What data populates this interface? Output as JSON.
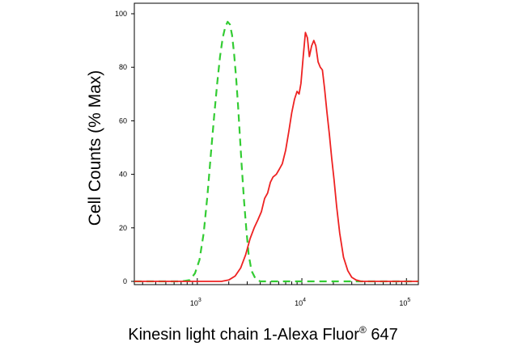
{
  "chart_data": {
    "type": "line",
    "xlabel": "Kinesin light chain 1-Alexa Fluor",
    "xlabel_sup": "®",
    "xlabel_suffix": "647",
    "ylabel": "Cell Counts (% Max)",
    "x_scale": "log",
    "xlim": [
      250,
      130000
    ],
    "ylim": [
      0,
      100
    ],
    "y_ticks": [
      0,
      20,
      40,
      60,
      80,
      100
    ],
    "x_ticks": [
      {
        "base": "10",
        "exp": "3",
        "value": 1000
      },
      {
        "base": "10",
        "exp": "4",
        "value": 10000
      },
      {
        "base": "10",
        "exp": "5",
        "value": 100000
      }
    ],
    "grid": false,
    "series": [
      {
        "color": "#33cc33",
        "style": "dashed",
        "points": [
          [
            250,
            0
          ],
          [
            700,
            0
          ],
          [
            850,
            0.5
          ],
          [
            950,
            3
          ],
          [
            1050,
            8
          ],
          [
            1150,
            18
          ],
          [
            1250,
            32
          ],
          [
            1350,
            48
          ],
          [
            1450,
            62
          ],
          [
            1550,
            74
          ],
          [
            1650,
            84
          ],
          [
            1750,
            91
          ],
          [
            1850,
            95
          ],
          [
            1950,
            97
          ],
          [
            2050,
            96
          ],
          [
            2150,
            92
          ],
          [
            2250,
            85
          ],
          [
            2350,
            76
          ],
          [
            2450,
            66
          ],
          [
            2550,
            55
          ],
          [
            2650,
            44
          ],
          [
            2800,
            30
          ],
          [
            2950,
            19
          ],
          [
            3100,
            10
          ],
          [
            3300,
            4
          ],
          [
            3600,
            1
          ],
          [
            4000,
            0
          ],
          [
            130000,
            0
          ]
        ]
      },
      {
        "color": "#ee2222",
        "style": "solid",
        "points": [
          [
            250,
            0
          ],
          [
            1700,
            0
          ],
          [
            2000,
            0.5
          ],
          [
            2300,
            2
          ],
          [
            2600,
            5
          ],
          [
            2900,
            10
          ],
          [
            3200,
            16
          ],
          [
            3500,
            20
          ],
          [
            3800,
            23
          ],
          [
            4100,
            26
          ],
          [
            4400,
            31
          ],
          [
            4700,
            33
          ],
          [
            5000,
            37
          ],
          [
            5300,
            39
          ],
          [
            5700,
            40
          ],
          [
            6100,
            42
          ],
          [
            6500,
            44
          ],
          [
            7000,
            49
          ],
          [
            7500,
            56
          ],
          [
            8000,
            63
          ],
          [
            8500,
            68
          ],
          [
            9000,
            71
          ],
          [
            9400,
            70
          ],
          [
            9800,
            74
          ],
          [
            10300,
            84
          ],
          [
            10800,
            93
          ],
          [
            11300,
            91
          ],
          [
            11800,
            84
          ],
          [
            12400,
            88
          ],
          [
            13000,
            90
          ],
          [
            13600,
            88
          ],
          [
            14300,
            82
          ],
          [
            15000,
            80
          ],
          [
            15700,
            79
          ],
          [
            16500,
            72
          ],
          [
            17400,
            63
          ],
          [
            18300,
            55
          ],
          [
            19300,
            46
          ],
          [
            20300,
            38
          ],
          [
            21500,
            28
          ],
          [
            23000,
            18
          ],
          [
            25000,
            9
          ],
          [
            27500,
            4
          ],
          [
            30000,
            1.5
          ],
          [
            33000,
            0.5
          ],
          [
            37000,
            0
          ],
          [
            130000,
            0
          ]
        ]
      }
    ]
  }
}
